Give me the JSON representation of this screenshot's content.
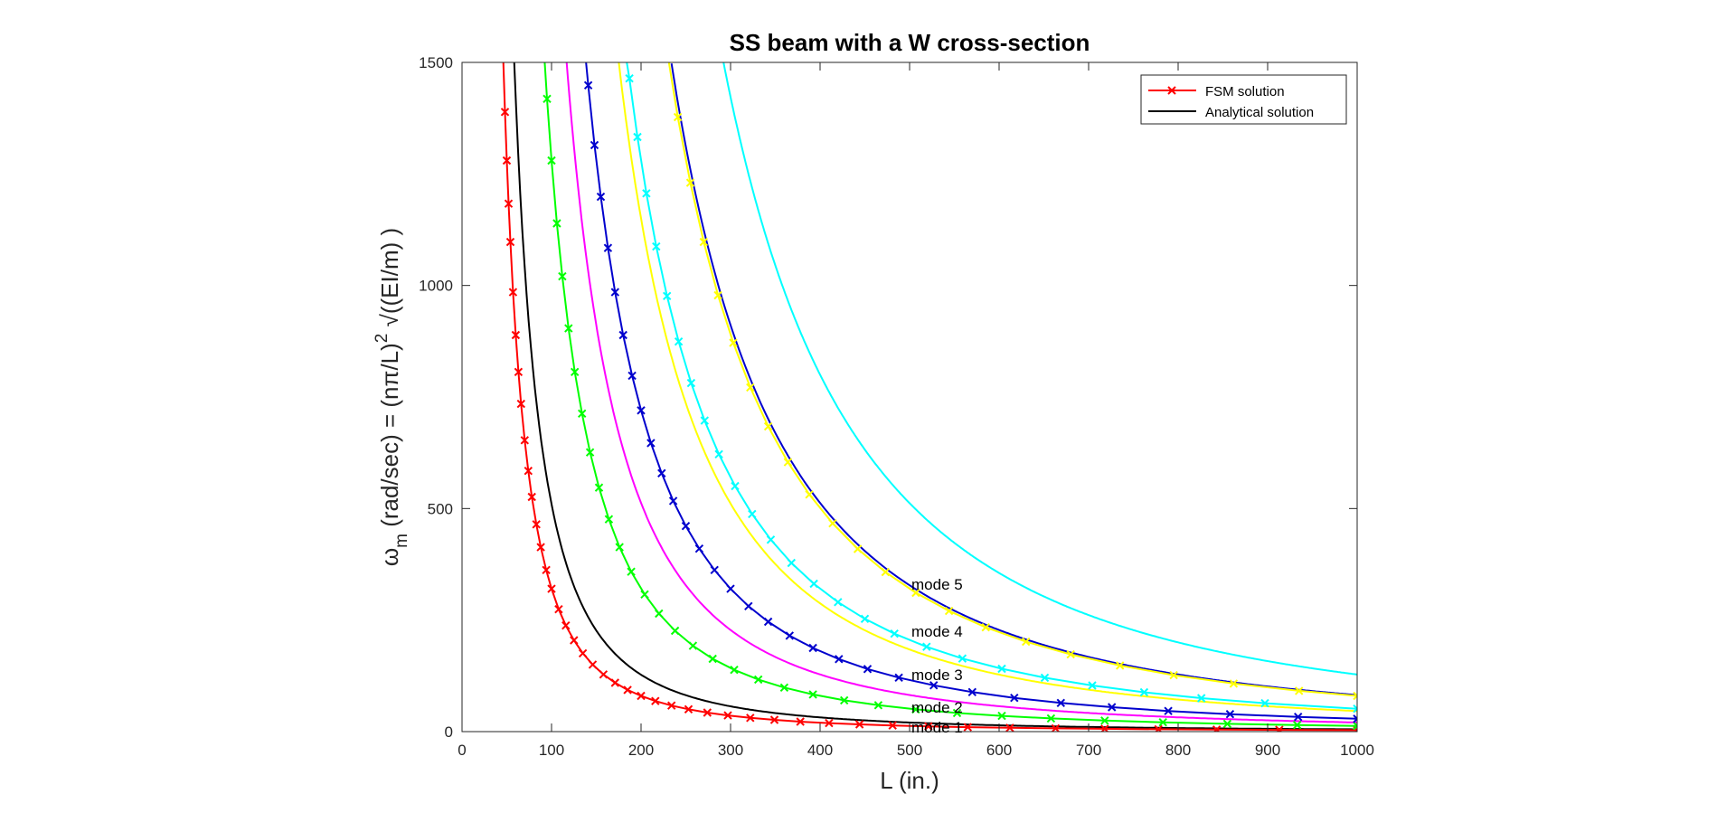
{
  "chart_data": {
    "type": "line",
    "title": "SS beam with a W cross-section",
    "xlabel": "L (in.)",
    "ylabel": {
      "prefix": "ω",
      "sub": "m",
      "mid": " (rad/sec) = (nπ/L)",
      "sup": "2",
      "suffix": " √((EI/m) )"
    },
    "xlim": [
      0,
      1000
    ],
    "ylim": [
      0,
      1500
    ],
    "xticks": [
      "0",
      "100",
      "200",
      "300",
      "400",
      "500",
      "600",
      "700",
      "800",
      "900",
      "1000"
    ],
    "yticks": [
      "0",
      "500",
      "1000",
      "1500"
    ],
    "grid": false,
    "legend": {
      "location": "top-right",
      "entries": [
        {
          "label": "FSM solution",
          "color": "#ff0000",
          "marker": "x"
        },
        {
          "label": "Analytical solution",
          "color": "#000000",
          "marker": "none"
        }
      ]
    },
    "annotations": [
      {
        "text": "mode 5",
        "x": 500,
        "y": 330
      },
      {
        "text": "mode 4",
        "x": 500,
        "y": 225
      },
      {
        "text": "mode 3",
        "x": 500,
        "y": 128
      },
      {
        "text": "mode 2",
        "x": 500,
        "y": 55
      },
      {
        "text": "mode 1",
        "x": 500,
        "y": 10
      }
    ],
    "series": [
      {
        "kind": "fsm",
        "mode": 1,
        "color": "#ff0000",
        "marker": "x",
        "coefficient": 3200000.0,
        "L": [
          20,
          21,
          22,
          23,
          24,
          25,
          26,
          27,
          28,
          29,
          30,
          31,
          32,
          33,
          34,
          35,
          36,
          37,
          38,
          39,
          40,
          41,
          42,
          44,
          46,
          48,
          50,
          52,
          54,
          57,
          60,
          63,
          66,
          70,
          74,
          78,
          83,
          88,
          94,
          100,
          108,
          116,
          125,
          135,
          146,
          158,
          171,
          185,
          200,
          216,
          234,
          253,
          274,
          297,
          322,
          349,
          378,
          410,
          444,
          481,
          521,
          565,
          612,
          663,
          718,
          778,
          843,
          913,
          1000
        ]
      },
      {
        "kind": "fsm",
        "mode": 2,
        "color": "#00ff00",
        "marker": "x",
        "coefficient": 12800000.0,
        "L": [
          36,
          38,
          40,
          42,
          44,
          46,
          48,
          50,
          52,
          54,
          56,
          58,
          60,
          62,
          65,
          68,
          71,
          74,
          78,
          82,
          86,
          90,
          95,
          100,
          106,
          112,
          119,
          126,
          134,
          143,
          153,
          164,
          176,
          189,
          204,
          220,
          238,
          258,
          280,
          304,
          331,
          360,
          392,
          427,
          465,
          507,
          553,
          603,
          658,
          718,
          783,
          855,
          933,
          1000
        ]
      },
      {
        "kind": "fsm",
        "mode": 3,
        "color": "#0000cd",
        "marker": "x",
        "coefficient": 28800000.0,
        "L": [
          55,
          58,
          61,
          64,
          67,
          70,
          73,
          76,
          79,
          82,
          85,
          88,
          92,
          96,
          100,
          104,
          108,
          113,
          118,
          123,
          129,
          135,
          141,
          148,
          155,
          163,
          171,
          180,
          190,
          200,
          211,
          223,
          236,
          250,
          265,
          282,
          300,
          320,
          342,
          366,
          392,
          421,
          453,
          488,
          527,
          570,
          617,
          669,
          726,
          789,
          858,
          934,
          1000
        ]
      },
      {
        "kind": "fsm",
        "mode": 4,
        "color": "#00ffff",
        "marker": "x",
        "coefficient": 51200000.0,
        "L": [
          74,
          78,
          82,
          86,
          90,
          94,
          98,
          102,
          106,
          110,
          115,
          120,
          125,
          130,
          136,
          142,
          148,
          155,
          162,
          170,
          178,
          187,
          196,
          206,
          217,
          229,
          242,
          256,
          271,
          287,
          305,
          324,
          345,
          368,
          393,
          420,
          450,
          483,
          519,
          559,
          603,
          651,
          704,
          762,
          826,
          897,
          1000
        ]
      },
      {
        "kind": "fsm",
        "mode": 5,
        "color": "#ffff00",
        "marker": "x",
        "coefficient": 80000000.0,
        "L": [
          92,
          97,
          102,
          107,
          112,
          118,
          124,
          130,
          137,
          144,
          151,
          159,
          167,
          176,
          185,
          195,
          205,
          216,
          228,
          241,
          255,
          270,
          286,
          303,
          322,
          342,
          364,
          388,
          414,
          442,
          473,
          507,
          544,
          585,
          630,
          680,
          735,
          795,
          862,
          935,
          1000
        ]
      },
      {
        "kind": "analytical",
        "mode": 1,
        "color": "#000000",
        "coefficient": 5100000.0,
        "Lmin": 58,
        "Lmax": 1000
      },
      {
        "kind": "analytical",
        "mode": 2,
        "color": "#ff00ff",
        "coefficient": 20500000.0,
        "Lmin": 116,
        "Lmax": 1000
      },
      {
        "kind": "analytical",
        "mode": 3,
        "color": "#ffff00",
        "coefficient": 46000000.0,
        "Lmin": 175,
        "Lmax": 1000
      },
      {
        "kind": "analytical",
        "mode": 4,
        "color": "#0000cd",
        "coefficient": 82000000.0,
        "Lmin": 234,
        "Lmax": 1000
      },
      {
        "kind": "analytical",
        "mode": 5,
        "color": "#00ffff",
        "coefficient": 128000000.0,
        "Lmin": 292,
        "Lmax": 1000
      }
    ]
  }
}
